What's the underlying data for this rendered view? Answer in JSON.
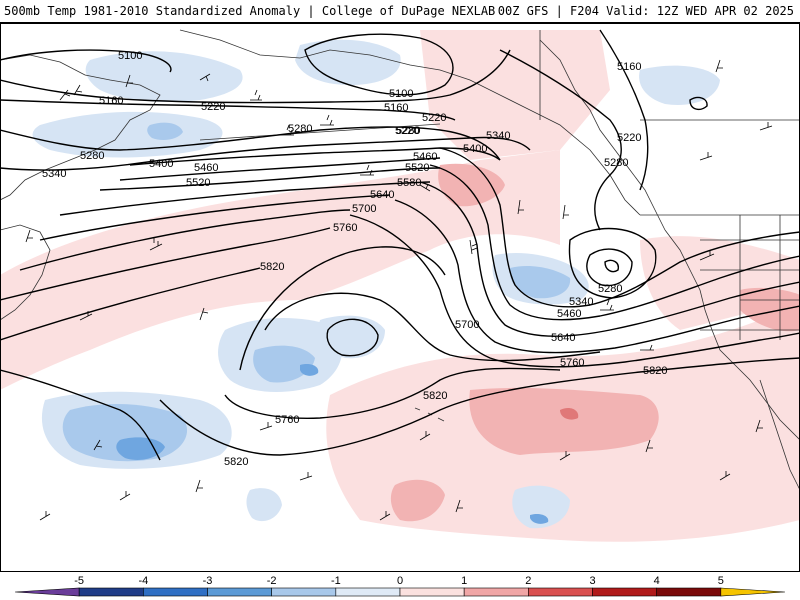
{
  "header": {
    "left_title": "500mb Temp 1981-2010 Standardized Anomaly | College of DuPage NEXLAB",
    "right_title": "00Z GFS | F204 Valid: 12Z WED APR 02 2025"
  },
  "colorbar": {
    "tick_labels": [
      "-5",
      "-4",
      "-3",
      "-2",
      "-1",
      "0",
      "1",
      "2",
      "3",
      "4",
      "5"
    ],
    "colors": [
      "#6a3d9a",
      "#1f3c88",
      "#2f6fc4",
      "#5b9ad6",
      "#a8c8ea",
      "#dfeaf6",
      "#fbe1df",
      "#f0a6a6",
      "#d95050",
      "#b01a1a",
      "#7a0a0a",
      "#f5c400"
    ]
  },
  "colors": {
    "cool_light": "#d6e4f4",
    "cool_mid": "#a9c9ec",
    "cool_strong": "#6fa6e0",
    "warm_light": "#fbe0e0",
    "warm_mid": "#f2b3b3",
    "warm_strong": "#e07878",
    "contour": "#000000",
    "coast": "#333333"
  },
  "contour_labels": [
    "5100",
    "5100",
    "5160",
    "5160",
    "5160",
    "5220",
    "5220",
    "5220",
    "5220",
    "5280",
    "5280",
    "5280",
    "5280",
    "5280",
    "5340",
    "5340",
    "5340",
    "5400",
    "5400",
    "5460",
    "5460",
    "5460",
    "5520",
    "5520",
    "5580",
    "5640",
    "5640",
    "5700",
    "5700",
    "5760",
    "5760",
    "5760",
    "5820",
    "5820",
    "5820",
    "5820"
  ],
  "map_features": {
    "contour_variable": "500mb Height",
    "shading_variable": "Temperature Standardized Anomaly",
    "wind_barbs": "shown"
  }
}
